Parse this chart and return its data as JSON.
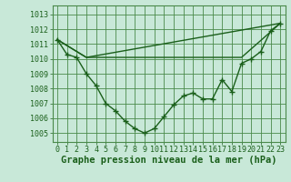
{
  "bg_color": "#c8e8d8",
  "grid_color": "#4a8a4a",
  "line_color": "#1a5f1a",
  "line_width": 1.0,
  "marker": "+",
  "marker_size": 4,
  "marker_edge_width": 1.0,
  "xlabel": "Graphe pression niveau de la mer (hPa)",
  "xlabel_fontsize": 7.5,
  "tick_fontsize": 6,
  "ylim": [
    1004.4,
    1013.6
  ],
  "xlim": [
    -0.5,
    23.5
  ],
  "yticks": [
    1005,
    1006,
    1007,
    1008,
    1009,
    1010,
    1011,
    1012,
    1013
  ],
  "xticks": [
    0,
    1,
    2,
    3,
    4,
    5,
    6,
    7,
    8,
    9,
    10,
    11,
    12,
    13,
    14,
    15,
    16,
    17,
    18,
    19,
    20,
    21,
    22,
    23
  ],
  "line1_x": [
    0,
    1,
    2,
    3,
    4,
    5,
    6,
    7,
    8,
    9,
    10,
    11,
    12,
    13,
    14,
    15,
    16,
    17,
    18,
    19,
    20,
    21,
    22,
    23
  ],
  "line1_y": [
    1011.3,
    1010.3,
    1010.1,
    1009.0,
    1008.2,
    1007.0,
    1006.5,
    1005.8,
    1005.3,
    1005.0,
    1005.3,
    1006.1,
    1006.9,
    1007.5,
    1007.7,
    1007.3,
    1007.3,
    1008.6,
    1007.8,
    1009.7,
    1010.0,
    1010.5,
    1011.9,
    1012.4
  ],
  "line2_x": [
    0,
    3,
    23
  ],
  "line2_y": [
    1011.3,
    1010.1,
    1012.4
  ],
  "line3_x": [
    0,
    3,
    19,
    23
  ],
  "line3_y": [
    1011.3,
    1010.1,
    1010.1,
    1012.4
  ]
}
